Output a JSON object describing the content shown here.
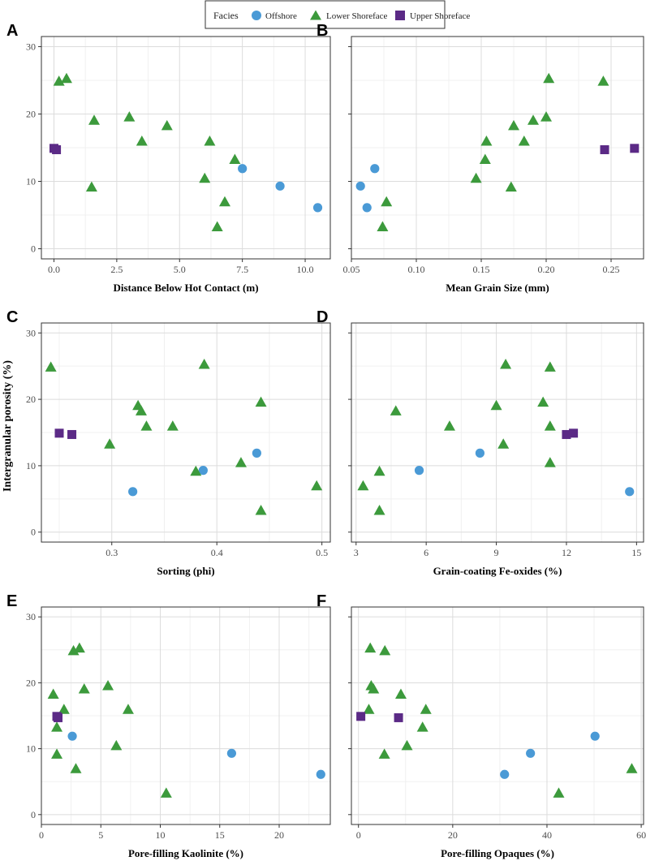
{
  "legend": {
    "title": "Facies",
    "entries": [
      {
        "label": "Offshore",
        "color": "#4a9ad6",
        "shape": "circle"
      },
      {
        "label": "Lower Shoreface",
        "color": "#3c9a3c",
        "shape": "triangle"
      },
      {
        "label": "Upper Shoreface",
        "color": "#5b2a86",
        "shape": "square"
      }
    ]
  },
  "shared_ylabel": "Intergranular porosity (%)",
  "chart_data": [
    {
      "type": "scatter",
      "panel": "A",
      "xlabel": "Distance Below Hot Contact (m)",
      "xlim": [
        -0.5,
        11
      ],
      "xticks": [
        0,
        2.5,
        5,
        7.5,
        10
      ],
      "xtick_labels": [
        "0.0",
        "2.5",
        "5.0",
        "7.5",
        "10.0"
      ],
      "ylim": [
        -1.5,
        31.5
      ],
      "yticks": [
        0,
        10,
        20,
        30
      ],
      "ytick_labels": [
        "0",
        "10",
        "20",
        "30"
      ],
      "show_yticks": true,
      "series": [
        {
          "name": "Offshore",
          "points": [
            [
              7.5,
              11.9
            ],
            [
              9.0,
              9.3
            ],
            [
              10.5,
              6.1
            ]
          ]
        },
        {
          "name": "Lower Shoreface",
          "points": [
            [
              0.2,
              24.8
            ],
            [
              0.5,
              25.2
            ],
            [
              1.6,
              19.0
            ],
            [
              3.0,
              19.5
            ],
            [
              3.5,
              15.9
            ],
            [
              4.5,
              18.2
            ],
            [
              6.2,
              15.9
            ],
            [
              7.2,
              13.2
            ],
            [
              6.0,
              10.4
            ],
            [
              1.5,
              9.1
            ],
            [
              6.8,
              6.9
            ],
            [
              6.5,
              3.2
            ]
          ]
        },
        {
          "name": "Upper Shoreface",
          "points": [
            [
              0.0,
              14.9
            ],
            [
              0.1,
              14.7
            ]
          ]
        }
      ]
    },
    {
      "type": "scatter",
      "panel": "B",
      "xlabel": "Mean Grain Size (mm)",
      "xlim": [
        0.05,
        0.275
      ],
      "xticks": [
        0.05,
        0.1,
        0.15,
        0.2,
        0.25
      ],
      "xtick_labels": [
        "0.05",
        "0.10",
        "0.15",
        "0.20",
        "0.25"
      ],
      "ylim": [
        -1.5,
        31.5
      ],
      "yticks": [
        0,
        10,
        20,
        30
      ],
      "ytick_labels": [
        "0",
        "10",
        "20",
        "30"
      ],
      "show_yticks": false,
      "series": [
        {
          "name": "Offshore",
          "points": [
            [
              0.057,
              9.3
            ],
            [
              0.062,
              6.1
            ],
            [
              0.068,
              11.9
            ]
          ]
        },
        {
          "name": "Lower Shoreface",
          "points": [
            [
              0.074,
              3.2
            ],
            [
              0.077,
              6.9
            ],
            [
              0.146,
              10.4
            ],
            [
              0.153,
              13.2
            ],
            [
              0.154,
              15.9
            ],
            [
              0.173,
              9.1
            ],
            [
              0.175,
              18.2
            ],
            [
              0.183,
              15.9
            ],
            [
              0.19,
              19.0
            ],
            [
              0.2,
              19.5
            ],
            [
              0.202,
              25.2
            ],
            [
              0.244,
              24.8
            ]
          ]
        },
        {
          "name": "Upper Shoreface",
          "points": [
            [
              0.245,
              14.7
            ],
            [
              0.268,
              14.9
            ]
          ]
        }
      ]
    },
    {
      "type": "scatter",
      "panel": "C",
      "xlabel": "Sorting (phi)",
      "xlim": [
        0.233,
        0.508
      ],
      "xticks": [
        0.3,
        0.4,
        0.5
      ],
      "xtick_labels": [
        "0.3",
        "0.4",
        "0.5"
      ],
      "ylim": [
        -1.5,
        31.5
      ],
      "yticks": [
        0,
        10,
        20,
        30
      ],
      "ytick_labels": [
        "0",
        "10",
        "20",
        "30"
      ],
      "show_yticks": true,
      "series": [
        {
          "name": "Offshore",
          "points": [
            [
              0.32,
              6.1
            ],
            [
              0.387,
              9.3
            ],
            [
              0.438,
              11.9
            ]
          ]
        },
        {
          "name": "Lower Shoreface",
          "points": [
            [
              0.242,
              24.8
            ],
            [
              0.298,
              13.2
            ],
            [
              0.325,
              19.0
            ],
            [
              0.328,
              18.2
            ],
            [
              0.333,
              15.9
            ],
            [
              0.358,
              15.9
            ],
            [
              0.38,
              9.1
            ],
            [
              0.388,
              25.2
            ],
            [
              0.423,
              10.4
            ],
            [
              0.442,
              19.5
            ],
            [
              0.442,
              3.2
            ],
            [
              0.495,
              6.9
            ]
          ]
        },
        {
          "name": "Upper Shoreface",
          "points": [
            [
              0.25,
              14.9
            ],
            [
              0.262,
              14.7
            ]
          ]
        }
      ]
    },
    {
      "type": "scatter",
      "panel": "D",
      "xlabel": "Grain-coating Fe-oxides (%)",
      "xlim": [
        2.8,
        15.3
      ],
      "xticks": [
        3,
        6,
        9,
        12,
        15
      ],
      "xtick_labels": [
        "3",
        "6",
        "9",
        "12",
        "15"
      ],
      "ylim": [
        -1.5,
        31.5
      ],
      "yticks": [
        0,
        10,
        20,
        30
      ],
      "ytick_labels": [
        "0",
        "10",
        "20",
        "30"
      ],
      "show_yticks": false,
      "series": [
        {
          "name": "Offshore",
          "points": [
            [
              5.7,
              9.3
            ],
            [
              8.3,
              11.9
            ],
            [
              14.7,
              6.1
            ]
          ]
        },
        {
          "name": "Lower Shoreface",
          "points": [
            [
              3.3,
              6.9
            ],
            [
              4.0,
              9.1
            ],
            [
              4.0,
              3.2
            ],
            [
              4.7,
              18.2
            ],
            [
              7.0,
              15.9
            ],
            [
              9.0,
              19.0
            ],
            [
              9.3,
              13.2
            ],
            [
              9.4,
              25.2
            ],
            [
              11.0,
              19.5
            ],
            [
              11.3,
              24.8
            ],
            [
              11.3,
              15.9
            ],
            [
              11.3,
              10.4
            ]
          ]
        },
        {
          "name": "Upper Shoreface",
          "points": [
            [
              12.0,
              14.7
            ],
            [
              12.3,
              14.9
            ]
          ]
        }
      ]
    },
    {
      "type": "scatter",
      "panel": "E",
      "xlabel": "Pore-filling Kaolinite (%)",
      "xlim": [
        0,
        24.3
      ],
      "xticks": [
        0,
        5,
        10,
        15,
        20
      ],
      "xtick_labels": [
        "0",
        "5",
        "10",
        "15",
        "20"
      ],
      "ylim": [
        -1.5,
        31.5
      ],
      "yticks": [
        0,
        10,
        20,
        30
      ],
      "ytick_labels": [
        "0",
        "10",
        "20",
        "30"
      ],
      "show_yticks": true,
      "series": [
        {
          "name": "Offshore",
          "points": [
            [
              2.6,
              11.9
            ],
            [
              16.0,
              9.3
            ],
            [
              23.5,
              6.1
            ]
          ]
        },
        {
          "name": "Lower Shoreface",
          "points": [
            [
              1.0,
              18.2
            ],
            [
              1.3,
              13.2
            ],
            [
              1.3,
              9.1
            ],
            [
              1.9,
              15.9
            ],
            [
              2.7,
              24.8
            ],
            [
              2.9,
              6.9
            ],
            [
              3.2,
              25.2
            ],
            [
              3.6,
              19.0
            ],
            [
              5.6,
              19.5
            ],
            [
              7.3,
              15.9
            ],
            [
              6.3,
              10.4
            ],
            [
              10.5,
              3.2
            ]
          ]
        },
        {
          "name": "Upper Shoreface",
          "points": [
            [
              1.3,
              14.9
            ],
            [
              1.4,
              14.7
            ]
          ]
        }
      ]
    },
    {
      "type": "scatter",
      "panel": "F",
      "xlabel": "Pore-filling Opaques (%)",
      "xlim": [
        -1.5,
        60.5
      ],
      "xticks": [
        0,
        20,
        40,
        60
      ],
      "xtick_labels": [
        "0",
        "20",
        "40",
        "60"
      ],
      "ylim": [
        -1.5,
        31.5
      ],
      "yticks": [
        0,
        10,
        20,
        30
      ],
      "ytick_labels": [
        "0",
        "10",
        "20",
        "30"
      ],
      "show_yticks": false,
      "series": [
        {
          "name": "Offshore",
          "points": [
            [
              31.0,
              6.1
            ],
            [
              36.5,
              9.3
            ],
            [
              50.2,
              11.9
            ]
          ]
        },
        {
          "name": "Lower Shoreface",
          "points": [
            [
              2.5,
              25.2
            ],
            [
              5.6,
              24.8
            ],
            [
              2.7,
              19.5
            ],
            [
              3.2,
              19.0
            ],
            [
              9.0,
              18.2
            ],
            [
              14.3,
              15.9
            ],
            [
              2.2,
              15.9
            ],
            [
              13.6,
              13.2
            ],
            [
              10.3,
              10.4
            ],
            [
              5.5,
              9.1
            ],
            [
              42.5,
              3.2
            ],
            [
              58.0,
              6.9
            ]
          ]
        },
        {
          "name": "Upper Shoreface",
          "points": [
            [
              0.5,
              14.9
            ],
            [
              8.5,
              14.7
            ]
          ]
        }
      ]
    }
  ]
}
